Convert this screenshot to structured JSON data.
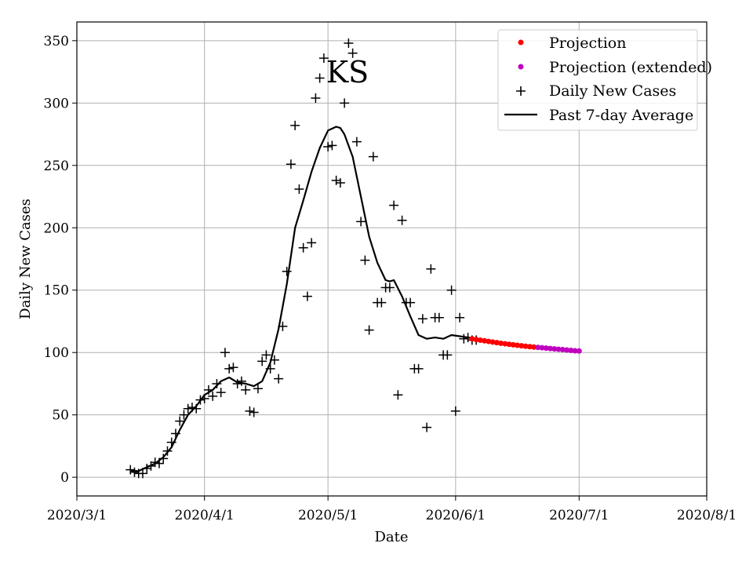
{
  "chart_data": {
    "type": "scatter",
    "title": "KS",
    "xlabel": "Date",
    "ylabel": "Daily New Cases",
    "x_tick_labels": [
      "2020/3/1",
      "2020/4/1",
      "2020/5/1",
      "2020/6/1",
      "2020/7/1",
      "2020/8/1"
    ],
    "y_ticks": [
      0,
      50,
      100,
      150,
      200,
      250,
      300,
      350
    ],
    "xlim": [
      0,
      153
    ],
    "ylim": [
      -15,
      365
    ],
    "x_unit": "days since 2020/3/1",
    "grid": true,
    "legend_position": "top-right",
    "legend": [
      "Projection",
      "Projection (extended)",
      "Daily New Cases",
      "Past 7-day Average"
    ],
    "colors": {
      "projection": "#ff0000",
      "projection_extended": "#bf00bf",
      "daily": "#000000",
      "average": "#000000"
    },
    "series": [
      {
        "name": "Daily New Cases",
        "marker": "+",
        "x": [
          13,
          14,
          15,
          16,
          17,
          18,
          19,
          20,
          21,
          22,
          23,
          24,
          25,
          26,
          27,
          28,
          29,
          30,
          31,
          32,
          33,
          34,
          35,
          36,
          37,
          38,
          39,
          40,
          41,
          42,
          43,
          44,
          45,
          46,
          47,
          48,
          49,
          50,
          51,
          52,
          53,
          54,
          55,
          56,
          57,
          58,
          59,
          60,
          61,
          62,
          63,
          64,
          65,
          66,
          67,
          68,
          69,
          70,
          71,
          72,
          73,
          74,
          75,
          76,
          77,
          78,
          79,
          80,
          81,
          82,
          83,
          84,
          85,
          86,
          87,
          88,
          89,
          90,
          91,
          92,
          93,
          94,
          95,
          96,
          97
        ],
        "y": [
          6,
          4,
          3,
          3,
          7,
          9,
          12,
          11,
          15,
          21,
          28,
          35,
          45,
          50,
          55,
          56,
          55,
          62,
          63,
          70,
          65,
          75,
          68,
          100,
          87,
          88,
          75,
          77,
          70,
          53,
          52,
          71,
          93,
          98,
          87,
          94,
          79,
          121,
          165,
          251,
          282,
          231,
          184,
          145,
          188,
          304,
          320,
          336,
          265,
          266,
          238,
          236,
          300,
          348,
          340,
          269,
          205,
          174,
          118,
          257,
          140,
          140,
          152,
          152,
          218,
          66,
          206,
          140,
          140,
          87,
          87,
          127,
          40,
          167,
          128,
          128,
          98,
          98,
          150,
          53,
          128,
          111,
          112,
          110,
          110
        ]
      },
      {
        "name": "Past 7-day Average",
        "line": true,
        "x": [
          13,
          15,
          17,
          19,
          21,
          23,
          25,
          27,
          29,
          31,
          33,
          35,
          37,
          39,
          41,
          43,
          45,
          47,
          49,
          51,
          53,
          55,
          57,
          59,
          61,
          63,
          64,
          65,
          67,
          69,
          71,
          73,
          75,
          76,
          77,
          79,
          81,
          83,
          85,
          87,
          89,
          91,
          93,
          95,
          97
        ],
        "y": [
          5,
          5,
          8,
          11,
          16,
          24,
          38,
          50,
          57,
          66,
          70,
          77,
          80,
          76,
          75,
          73,
          77,
          92,
          119,
          155,
          200,
          222,
          245,
          264,
          278,
          281,
          280,
          275,
          257,
          225,
          193,
          172,
          158,
          157,
          158,
          145,
          129,
          114,
          111,
          112,
          111,
          114,
          113,
          112,
          111
        ]
      },
      {
        "name": "Projection",
        "marker": "dot",
        "x": [
          96,
          97,
          98,
          99,
          100,
          101,
          102,
          103,
          104,
          105,
          106,
          107,
          108,
          109,
          110,
          111
        ],
        "y": [
          111,
          110.4,
          109.9,
          109.4,
          108.9,
          108.4,
          107.9,
          107.4,
          107.0,
          106.6,
          106.2,
          105.8,
          105.4,
          105.0,
          104.7,
          104.4
        ]
      },
      {
        "name": "Projection (extended)",
        "marker": "dot",
        "x": [
          112,
          113,
          114,
          115,
          116,
          117,
          118,
          119,
          120,
          121,
          122
        ],
        "y": [
          104.1,
          103.8,
          103.5,
          103.2,
          102.9,
          102.6,
          102.3,
          102.0,
          101.7,
          101.4,
          101.2
        ]
      }
    ]
  }
}
